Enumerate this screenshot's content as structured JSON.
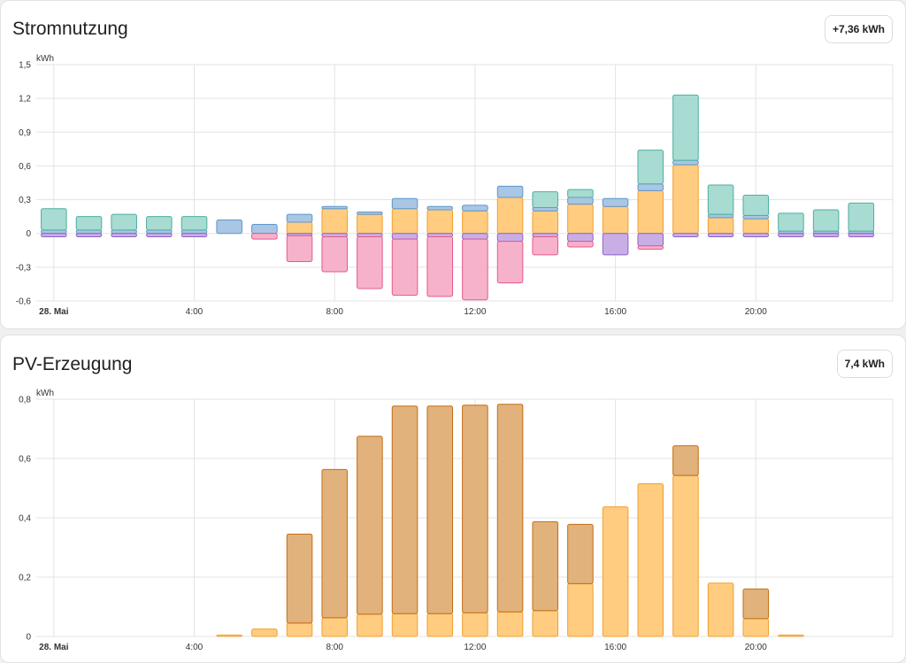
{
  "cards": [
    {
      "title": "Stromnutzung",
      "badge": "+7,36 kWh",
      "chart_data": {
        "type": "bar",
        "stacked": true,
        "unit": "kWh",
        "ylim": [
          -0.6,
          1.5
        ],
        "y_ticks": [
          1.5,
          1.2,
          0.9,
          0.6,
          0.3,
          0,
          -0.3,
          -0.6
        ],
        "y_tick_labels": [
          "1,5",
          "1,2",
          "0,9",
          "0,6",
          "0,3",
          "0",
          "-0,3",
          "-0,6"
        ],
        "x_range_hours": [
          -0.5,
          23.9
        ],
        "x_ticks": [
          0,
          4,
          8,
          12,
          16,
          20
        ],
        "x_tick_labels": [
          "28. Mai",
          "4:00",
          "8:00",
          "12:00",
          "16:00",
          "20:00"
        ],
        "hours": [
          0,
          1,
          2,
          3,
          4,
          5,
          6,
          7,
          8,
          9,
          10,
          11,
          12,
          13,
          14,
          15,
          16,
          17,
          18,
          19,
          20,
          21,
          22,
          23
        ],
        "series": [
          {
            "id": "solar",
            "fill": "#ffcc80",
            "stroke": "#f0a030",
            "values": [
              0,
              0,
              0,
              0,
              0,
              0,
              0,
              0.1,
              0.22,
              0.17,
              0.22,
              0.21,
              0.2,
              0.32,
              0.2,
              0.26,
              0.24,
              0.38,
              0.61,
              0.14,
              0.13,
              0,
              0,
              0
            ]
          },
          {
            "id": "battery_out",
            "fill": "#a9c6e4",
            "stroke": "#5e96cb",
            "values": [
              0.03,
              0.03,
              0.03,
              0.03,
              0.03,
              0.12,
              0.08,
              0.07,
              0.02,
              0.02,
              0.09,
              0.03,
              0.05,
              0.1,
              0.03,
              0.06,
              0.07,
              0.06,
              0.04,
              0.03,
              0.03,
              0.02,
              0.02,
              0.02
            ]
          },
          {
            "id": "grid",
            "fill": "#a8dbd1",
            "stroke": "#4bb0a0",
            "values": [
              0.19,
              0.12,
              0.14,
              0.12,
              0.12,
              0,
              0,
              0,
              0,
              0,
              0,
              0,
              0,
              0,
              0.14,
              0.07,
              0,
              0.3,
              0.58,
              0.26,
              0.18,
              0.16,
              0.19,
              0.25
            ]
          },
          {
            "id": "battery_in",
            "fill": "#c9aee6",
            "stroke": "#8c63c6",
            "values": [
              -0.03,
              -0.03,
              -0.03,
              -0.03,
              -0.03,
              0,
              0,
              -0.02,
              -0.03,
              -0.03,
              -0.05,
              -0.03,
              -0.05,
              -0.07,
              -0.03,
              -0.07,
              -0.19,
              -0.11,
              -0.03,
              -0.03,
              -0.03,
              -0.03,
              -0.03,
              -0.03
            ]
          },
          {
            "id": "grid_return",
            "fill": "#f7b2cb",
            "stroke": "#e55a8c",
            "values": [
              0,
              0,
              0,
              0,
              0,
              0,
              -0.05,
              -0.23,
              -0.31,
              -0.46,
              -0.5,
              -0.53,
              -0.54,
              -0.37,
              -0.16,
              -0.05,
              0,
              -0.03,
              0,
              0,
              0,
              0,
              0,
              0
            ]
          }
        ]
      }
    },
    {
      "title": "PV-Erzeugung",
      "badge": "7,4 kWh",
      "chart_data": {
        "type": "bar",
        "stacked": true,
        "unit": "kWh",
        "ylim": [
          0,
          0.8
        ],
        "y_ticks": [
          0.8,
          0.6,
          0.4,
          0.2,
          0
        ],
        "y_tick_labels": [
          "0,8",
          "0,6",
          "0,4",
          "0,2",
          "0"
        ],
        "x_range_hours": [
          -0.5,
          23.9
        ],
        "x_ticks": [
          0,
          4,
          8,
          12,
          16,
          20
        ],
        "x_tick_labels": [
          "28. Mai",
          "4:00",
          "8:00",
          "12:00",
          "16:00",
          "20:00"
        ],
        "hours": [
          0,
          1,
          2,
          3,
          4,
          5,
          6,
          7,
          8,
          9,
          10,
          11,
          12,
          13,
          14,
          15,
          16,
          17,
          18,
          19,
          20,
          21,
          22,
          23
        ],
        "series": [
          {
            "id": "pv_light",
            "fill": "#ffcc80",
            "stroke": "#f0a030",
            "values": [
              0,
              0,
              0,
              0,
              0,
              0.005,
              0.025,
              0.045,
              0.063,
              0.075,
              0.077,
              0.077,
              0.08,
              0.083,
              0.087,
              0.178,
              0.437,
              0.515,
              0.543,
              0.18,
              0.06,
              0.005,
              0,
              0
            ]
          },
          {
            "id": "pv_dark",
            "fill": "#e1b27b",
            "stroke": "#c46d14",
            "values": [
              0,
              0,
              0,
              0,
              0,
              0,
              0,
              0.3,
              0.5,
              0.6,
              0.7,
              0.7,
              0.7,
              0.7,
              0.3,
              0.2,
              0,
              0,
              0.1,
              0,
              0.1,
              0,
              0,
              0
            ]
          }
        ]
      }
    }
  ]
}
